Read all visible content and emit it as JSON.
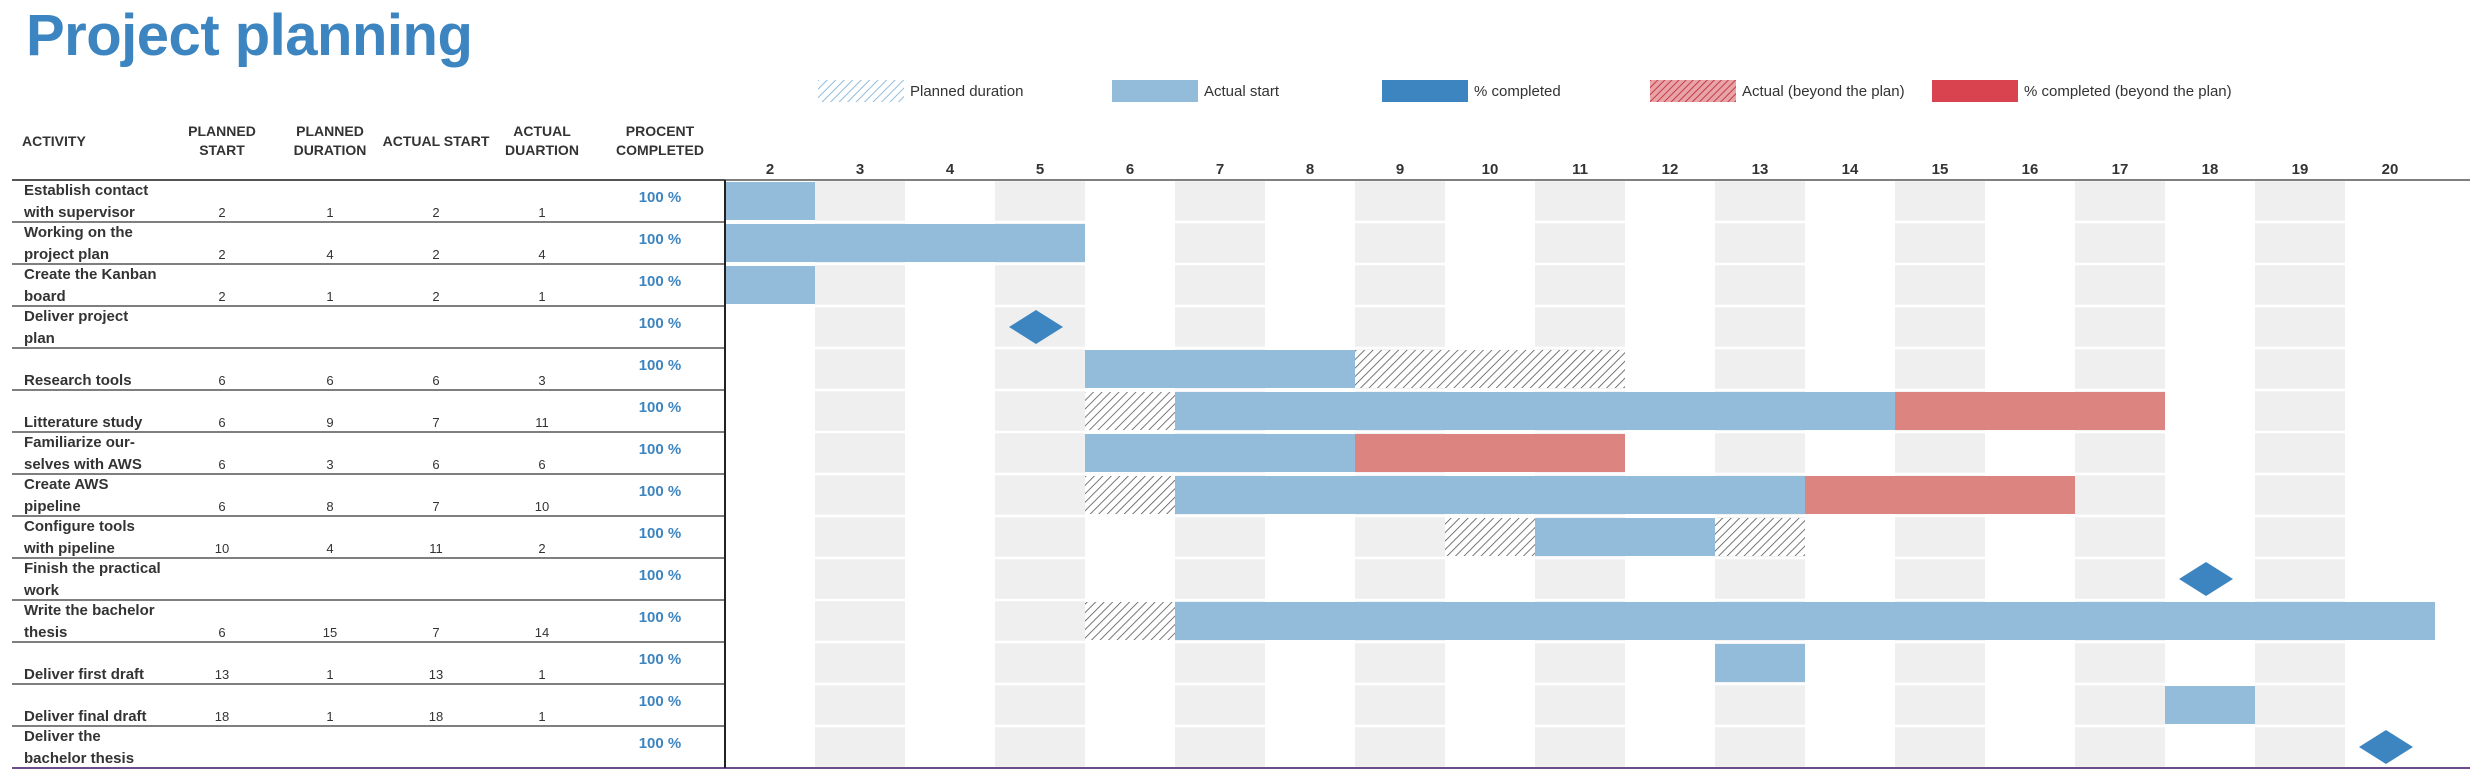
{
  "title": "Project planning",
  "legend": [
    {
      "key": "planned",
      "label": "Planned duration",
      "fill": "hatch-blue"
    },
    {
      "key": "actual",
      "label": "Actual start",
      "fill": "#93bcdb"
    },
    {
      "key": "completed",
      "label": "% completed",
      "fill": "#3d85c0"
    },
    {
      "key": "beyond",
      "label": "Actual (beyond the plan)",
      "fill": "hatch-red"
    },
    {
      "key": "beyond_completed",
      "label": "% completed (beyond the plan)",
      "fill": "#d9434f"
    }
  ],
  "columns": {
    "activity": "ACTIVITY",
    "planned_start": "PLANNED\nSTART",
    "planned_duration": "PLANNED\nDURATION",
    "actual_start": "ACTUAL START",
    "actual_duration": "ACTUAL\nDUARTION",
    "percent_completed": "PROCENT\nCOMPLETED"
  },
  "colors": {
    "actual": "#93bcdb",
    "beyond": "#dc8480",
    "milestone": "#3d85c0",
    "percent_text": "#3d85c0",
    "grid_shade": "#efefef",
    "hatch": "#555555"
  },
  "chart_data": {
    "type": "gantt",
    "periods": [
      2,
      3,
      4,
      5,
      6,
      7,
      8,
      9,
      10,
      11,
      12,
      13,
      14,
      15,
      16,
      17,
      18,
      19,
      20
    ],
    "grid": true,
    "tasks": [
      {
        "activity": "Establish contact\nwith supervisor",
        "planned_start": "2",
        "planned_duration": "1",
        "actual_start": "2",
        "actual_duration": "1",
        "percent": "100 %",
        "bars": [
          {
            "from": 2,
            "to": 3,
            "kind": "actual"
          }
        ]
      },
      {
        "activity": "Working on the\nproject plan",
        "planned_start": "2",
        "planned_duration": "4",
        "actual_start": "2",
        "actual_duration": "4",
        "percent": "100 %",
        "bars": [
          {
            "from": 2,
            "to": 6,
            "kind": "actual"
          }
        ]
      },
      {
        "activity": "Create the Kanban\nboard",
        "planned_start": "2",
        "planned_duration": "1",
        "actual_start": "2",
        "actual_duration": "1",
        "percent": "100 %",
        "bars": [
          {
            "from": 2,
            "to": 3,
            "kind": "actual"
          }
        ]
      },
      {
        "activity": "Deliver project\nplan",
        "planned_start": "",
        "planned_duration": "",
        "actual_start": "",
        "actual_duration": "",
        "percent": "100 %",
        "milestone": 5,
        "bars": []
      },
      {
        "activity": "Research tools",
        "planned_start": "6",
        "planned_duration": "6",
        "actual_start": "6",
        "actual_duration": "3",
        "percent": "100 %",
        "bars": [
          {
            "from": 6,
            "to": 9,
            "kind": "actual"
          },
          {
            "from": 9,
            "to": 12,
            "kind": "planned"
          }
        ]
      },
      {
        "activity": "Litterature study",
        "planned_start": "6",
        "planned_duration": "9",
        "actual_start": "7",
        "actual_duration": "11",
        "percent": "100 %",
        "bars": [
          {
            "from": 6,
            "to": 7,
            "kind": "planned"
          },
          {
            "from": 7,
            "to": 15,
            "kind": "actual"
          },
          {
            "from": 15,
            "to": 18,
            "kind": "beyond"
          }
        ]
      },
      {
        "activity": "Familiarize our-\nselves with AWS",
        "planned_start": "6",
        "planned_duration": "3",
        "actual_start": "6",
        "actual_duration": "6",
        "percent": "100 %",
        "bars": [
          {
            "from": 6,
            "to": 9,
            "kind": "actual"
          },
          {
            "from": 9,
            "to": 12,
            "kind": "beyond"
          }
        ]
      },
      {
        "activity": "Create AWS\npipeline",
        "planned_start": "6",
        "planned_duration": "8",
        "actual_start": "7",
        "actual_duration": "10",
        "percent": "100 %",
        "bars": [
          {
            "from": 6,
            "to": 7,
            "kind": "planned"
          },
          {
            "from": 7,
            "to": 14,
            "kind": "actual"
          },
          {
            "from": 14,
            "to": 17,
            "kind": "beyond"
          }
        ]
      },
      {
        "activity": "Configure tools\nwith pipeline",
        "planned_start": "10",
        "planned_duration": "4",
        "actual_start": "11",
        "actual_duration": "2",
        "percent": "100 %",
        "bars": [
          {
            "from": 10,
            "to": 11,
            "kind": "planned"
          },
          {
            "from": 11,
            "to": 13,
            "kind": "actual"
          },
          {
            "from": 13,
            "to": 14,
            "kind": "planned"
          }
        ]
      },
      {
        "activity": "Finish the practical\nwork",
        "planned_start": "",
        "planned_duration": "",
        "actual_start": "",
        "actual_duration": "",
        "percent": "100 %",
        "milestone": 18,
        "bars": []
      },
      {
        "activity": "Write the bachelor\nthesis",
        "planned_start": "6",
        "planned_duration": "15",
        "actual_start": "7",
        "actual_duration": "14",
        "percent": "100 %",
        "bars": [
          {
            "from": 6,
            "to": 7,
            "kind": "planned"
          },
          {
            "from": 7,
            "to": 21,
            "kind": "actual"
          }
        ]
      },
      {
        "activity": "Deliver first draft",
        "planned_start": "13",
        "planned_duration": "1",
        "actual_start": "13",
        "actual_duration": "1",
        "percent": "100 %",
        "bars": [
          {
            "from": 13,
            "to": 14,
            "kind": "actual"
          }
        ]
      },
      {
        "activity": "Deliver final draft",
        "planned_start": "18",
        "planned_duration": "1",
        "actual_start": "18",
        "actual_duration": "1",
        "percent": "100 %",
        "bars": [
          {
            "from": 18,
            "to": 19,
            "kind": "actual"
          }
        ]
      },
      {
        "activity": "Deliver the\nbachelor thesis",
        "planned_start": "",
        "planned_duration": "",
        "actual_start": "",
        "actual_duration": "",
        "percent": "100 %",
        "milestone": 20,
        "bars": []
      }
    ]
  }
}
